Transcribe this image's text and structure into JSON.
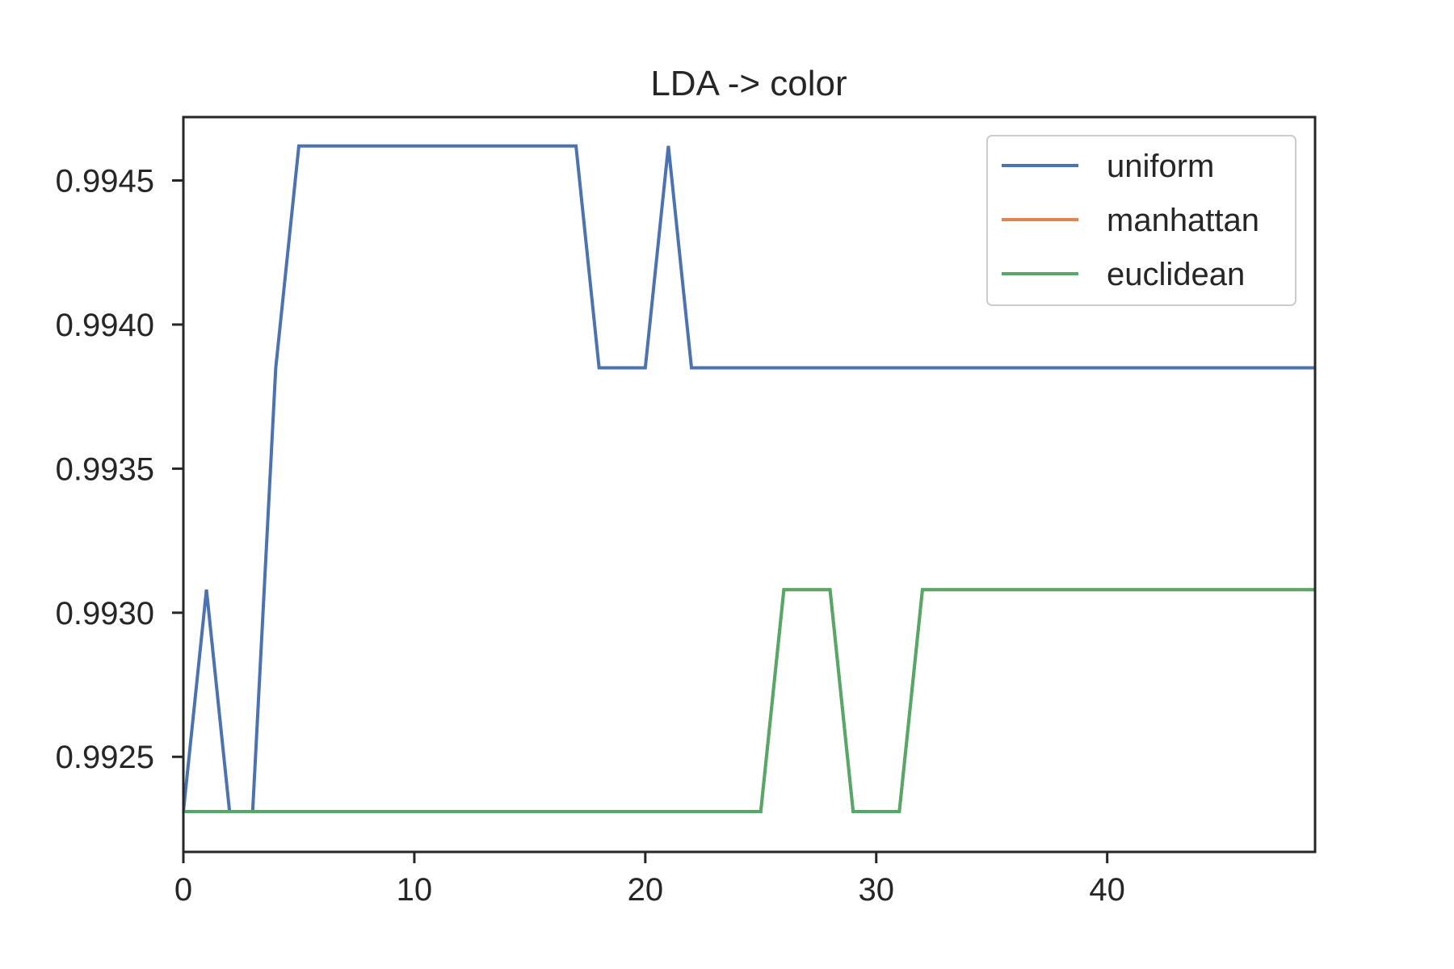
{
  "chart_data": {
    "type": "line",
    "title": "LDA -> color",
    "xlabel": "",
    "ylabel": "",
    "xlim": [
      0,
      49
    ],
    "ylim": [
      0.99217,
      0.99472
    ],
    "xticks": [
      0,
      10,
      20,
      30,
      40
    ],
    "xtick_labels": [
      "0",
      "10",
      "20",
      "30",
      "40"
    ],
    "yticks": [
      0.9925,
      0.993,
      0.9935,
      0.994,
      0.9945
    ],
    "ytick_labels": [
      "0.9925",
      "0.9930",
      "0.9935",
      "0.9940",
      "0.9945"
    ],
    "grid": false,
    "legend_position": "top-right",
    "x": [
      0,
      1,
      2,
      3,
      4,
      5,
      6,
      7,
      8,
      9,
      10,
      11,
      12,
      13,
      14,
      15,
      16,
      17,
      18,
      19,
      20,
      21,
      22,
      23,
      24,
      25,
      26,
      27,
      28,
      29,
      30,
      31,
      32,
      33,
      34,
      35,
      36,
      37,
      38,
      39,
      40,
      41,
      42,
      43,
      44,
      45,
      46,
      47,
      48,
      49
    ],
    "series": [
      {
        "name": "uniform",
        "color": "#4c72b0",
        "values": [
          0.99231,
          0.99308,
          0.99231,
          0.99231,
          0.99385,
          0.99462,
          0.99462,
          0.99462,
          0.99462,
          0.99462,
          0.99462,
          0.99462,
          0.99462,
          0.99462,
          0.99462,
          0.99462,
          0.99462,
          0.99462,
          0.99385,
          0.99385,
          0.99385,
          0.99462,
          0.99385,
          0.99385,
          0.99385,
          0.99385,
          0.99385,
          0.99385,
          0.99385,
          0.99385,
          0.99385,
          0.99385,
          0.99385,
          0.99385,
          0.99385,
          0.99385,
          0.99385,
          0.99385,
          0.99385,
          0.99385,
          0.99385,
          0.99385,
          0.99385,
          0.99385,
          0.99385,
          0.99385,
          0.99385,
          0.99385,
          0.99385,
          0.99385
        ]
      },
      {
        "name": "manhattan",
        "color": "#dd8452",
        "values": [
          0.99231,
          0.99231,
          0.99231,
          0.99231,
          0.99231,
          0.99231,
          0.99231,
          0.99231,
          0.99231,
          0.99231,
          0.99231,
          0.99231,
          0.99231,
          0.99231,
          0.99231,
          0.99231,
          0.99231,
          0.99231,
          0.99231,
          0.99231,
          0.99231,
          0.99231,
          0.99231,
          0.99231,
          0.99231,
          0.99231,
          0.99308,
          0.99308,
          0.99308,
          0.99231,
          0.99231,
          0.99231,
          0.99308,
          0.99308,
          0.99308,
          0.99308,
          0.99308,
          0.99308,
          0.99308,
          0.99308,
          0.99308,
          0.99308,
          0.99308,
          0.99308,
          0.99308,
          0.99308,
          0.99308,
          0.99308,
          0.99308,
          0.99308
        ]
      },
      {
        "name": "euclidean",
        "color": "#55a868",
        "values": [
          0.99231,
          0.99231,
          0.99231,
          0.99231,
          0.99231,
          0.99231,
          0.99231,
          0.99231,
          0.99231,
          0.99231,
          0.99231,
          0.99231,
          0.99231,
          0.99231,
          0.99231,
          0.99231,
          0.99231,
          0.99231,
          0.99231,
          0.99231,
          0.99231,
          0.99231,
          0.99231,
          0.99231,
          0.99231,
          0.99231,
          0.99308,
          0.99308,
          0.99308,
          0.99231,
          0.99231,
          0.99231,
          0.99308,
          0.99308,
          0.99308,
          0.99308,
          0.99308,
          0.99308,
          0.99308,
          0.99308,
          0.99308,
          0.99308,
          0.99308,
          0.99308,
          0.99308,
          0.99308,
          0.99308,
          0.99308,
          0.99308,
          0.99308
        ]
      }
    ]
  }
}
